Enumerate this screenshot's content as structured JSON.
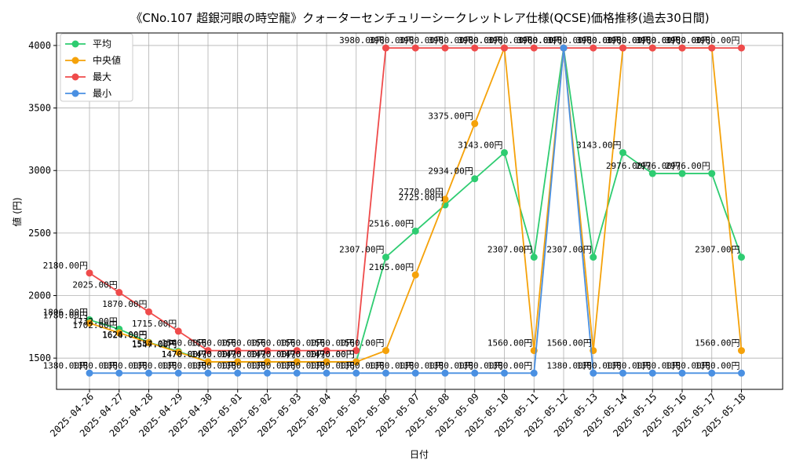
{
  "chart_data": {
    "type": "line",
    "title": "《CNo.107 超銀河眼の時空龍》クォーターセンチュリーシークレットレア仕様(QCSE)価格推移(過去30日間)",
    "xlabel": "日付",
    "ylabel": "値 (円)",
    "ylim": [
      1250,
      4100
    ],
    "yticks": [
      1500,
      2000,
      2500,
      3000,
      3500,
      4000
    ],
    "grid": true,
    "legend_position": "top-left",
    "label_suffix": "円",
    "categories": [
      "2025-04-26",
      "2025-04-27",
      "2025-04-28",
      "2025-04-29",
      "2025-04-30",
      "2025-05-01",
      "2025-05-02",
      "2025-05-03",
      "2025-05-04",
      "2025-05-05",
      "2025-05-06",
      "2025-05-07",
      "2025-05-08",
      "2025-05-09",
      "2025-05-10",
      "2025-05-11",
      "2025-05-12",
      "2025-05-13",
      "2025-05-14",
      "2025-05-15",
      "2025-05-16",
      "2025-05-17",
      "2025-05-18"
    ],
    "series": [
      {
        "name": "平均",
        "color": "#2ecc71",
        "label_side": "left",
        "values": [
          1806,
          1732,
          1626,
          1554,
          1470,
          1470,
          1470,
          1470,
          1470,
          1470,
          2307,
          2516,
          2725,
          2934,
          3143,
          2307,
          3980,
          2307,
          3143,
          2976,
          2976,
          2976,
          2307
        ]
      },
      {
        "name": "中央値",
        "color": "#f5a20a",
        "label_side": "left",
        "values": [
          1780,
          1702,
          1624,
          1547,
          1470,
          1470,
          1470,
          1470,
          1470,
          1470,
          1560,
          2165,
          2770,
          3375,
          3980,
          1560,
          3980,
          1560,
          3980,
          3980,
          3980,
          3980,
          1560
        ]
      },
      {
        "name": "最大",
        "color": "#ef4b4b",
        "label_side": "left",
        "values": [
          2180,
          2025,
          1870,
          1715,
          1560,
          1560,
          1560,
          1560,
          1560,
          1560,
          3980,
          3980,
          3980,
          3980,
          3980,
          3980,
          3980,
          3980,
          3980,
          3980,
          3980,
          3980,
          3980
        ]
      },
      {
        "name": "最小",
        "color": "#4a90e2",
        "label_side": "left",
        "values": [
          1380,
          1380,
          1380,
          1380,
          1380,
          1380,
          1380,
          1380,
          1380,
          1380,
          1380,
          1380,
          1380,
          1380,
          1380,
          1380,
          3980,
          1380,
          1380,
          1380,
          1380,
          1380,
          1380
        ]
      }
    ]
  }
}
